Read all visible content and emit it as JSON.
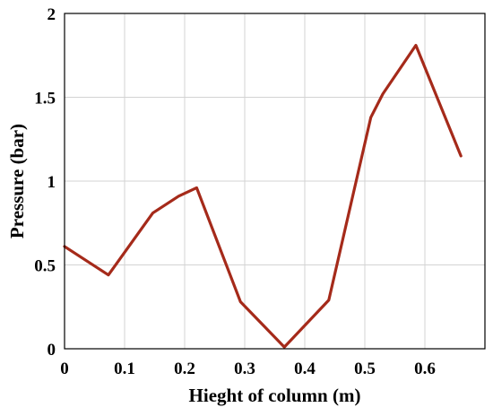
{
  "chart_data": {
    "type": "line",
    "title": "",
    "xlabel": "Hieght of column (m)",
    "ylabel": "Pressure (bar)",
    "xlim": [
      0,
      0.7
    ],
    "ylim": [
      0,
      2
    ],
    "x_ticks": [
      0,
      0.1,
      0.2,
      0.3,
      0.4,
      0.5,
      0.6
    ],
    "x_tick_labels": [
      "0",
      "0.1",
      "0.2",
      "0.3",
      "0.4",
      "0.5",
      "0.6"
    ],
    "y_ticks": [
      0,
      0.5,
      1,
      1.5,
      2
    ],
    "y_tick_labels": [
      "0",
      "0.5",
      "1",
      "1.5",
      "2"
    ],
    "grid": true,
    "series": [
      {
        "color": "#a52a1a",
        "x": [
          0,
          0.073,
          0.147,
          0.19,
          0.22,
          0.293,
          0.366,
          0.44,
          0.51,
          0.53,
          0.585,
          0.66
        ],
        "y": [
          0.61,
          0.44,
          0.81,
          0.91,
          0.96,
          0.28,
          0.01,
          0.29,
          1.38,
          1.52,
          1.81,
          1.15
        ]
      }
    ]
  }
}
